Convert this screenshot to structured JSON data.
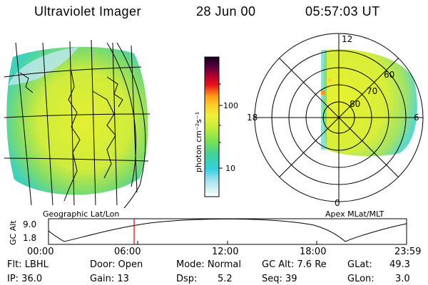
{
  "header": {
    "title": "Ultraviolet Imager",
    "date": "28 Jun 00",
    "time": "05:57:03 UT"
  },
  "geo_panel": {
    "caption": "Geographic Lat/Lon"
  },
  "polar_panel": {
    "caption": "Apex MLat/MLT",
    "mlt_labels": {
      "top": "12",
      "left": "18",
      "right": "6",
      "bottom": "0"
    },
    "lat_labels": [
      "60",
      "70",
      "80"
    ]
  },
  "colorbar": {
    "unit_label": "photon cm⁻²s⁻¹",
    "ticks": [
      "100",
      "10"
    ],
    "scale": "log"
  },
  "altitude_plot": {
    "ylabel": "GC Alt",
    "yticks": [
      "9.0",
      "1.8"
    ],
    "xticks": [
      "00:00",
      "06:00",
      "12:00",
      "18:00",
      "23:59"
    ],
    "marker_time": "05:57",
    "marker_color": "#e00000"
  },
  "info": {
    "row1": {
      "flt": "Flt: LBHL",
      "door": "Door: Open",
      "mode": "Mode: Normal",
      "gcalt": "GC Alt: 7.6 Re",
      "glat_label": "GLat:",
      "glat_value": "49.3"
    },
    "row2": {
      "ip": "IP: 36.0",
      "gain": "Gain: 13",
      "dsp_label": "Dsp:",
      "dsp_value": "5.2",
      "seq": "Seq: 39",
      "glon_label": "GLon:",
      "glon_value": "3.0"
    }
  },
  "colors": {
    "emission_primary": "#dcef3a",
    "emission_edge": "#3fd1b9",
    "emission_pale": "#b8e6ef",
    "grid": "#000000"
  }
}
